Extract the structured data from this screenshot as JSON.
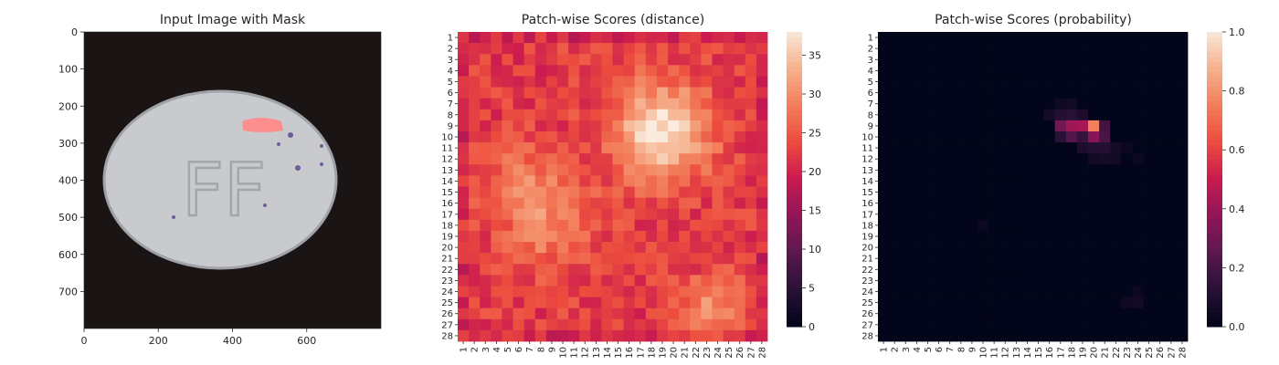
{
  "chart_data": [
    {
      "type": "image",
      "title": "Input Image with Mask",
      "xticks": [
        "0",
        "200",
        "400",
        "600"
      ],
      "yticks": [
        "0",
        "100",
        "200",
        "300",
        "400",
        "500",
        "600",
        "700"
      ],
      "xlim": [
        0,
        800
      ],
      "ylim": [
        0,
        800
      ],
      "image": {
        "background": "#1a1212",
        "pill_color": "#c7c9cc",
        "embossed_text": "FF",
        "mask_color": "#ff8080"
      }
    },
    {
      "type": "heatmap",
      "title": "Patch-wise Scores (distance)",
      "rows": 28,
      "cols": 28,
      "row_labels": [
        "1",
        "2",
        "3",
        "4",
        "5",
        "6",
        "7",
        "8",
        "9",
        "10",
        "11",
        "12",
        "13",
        "14",
        "15",
        "16",
        "17",
        "18",
        "19",
        "20",
        "21",
        "22",
        "23",
        "24",
        "25",
        "26",
        "27",
        "28"
      ],
      "col_labels": [
        "1",
        "2",
        "3",
        "4",
        "5",
        "6",
        "7",
        "8",
        "9",
        "10",
        "11",
        "12",
        "13",
        "14",
        "15",
        "16",
        "17",
        "18",
        "19",
        "20",
        "21",
        "22",
        "23",
        "24",
        "25",
        "26",
        "27",
        "28"
      ],
      "colormap": "rocket",
      "vmin": 0,
      "vmax": 38,
      "colorbar_ticks": [
        "0",
        "5",
        "10",
        "15",
        "20",
        "25",
        "30",
        "35"
      ],
      "base_value": 22,
      "hotspots": [
        {
          "row": 9.5,
          "col": 19,
          "peak": 38,
          "spread": 3.0
        },
        {
          "row": 18,
          "col": 9,
          "peak": 28,
          "spread": 3.0
        },
        {
          "row": 25.5,
          "col": 23.5,
          "peak": 30,
          "spread": 2.0
        },
        {
          "row": 14,
          "col": 6,
          "peak": 27,
          "spread": 2.5
        }
      ]
    },
    {
      "type": "heatmap",
      "title": "Patch-wise Scores (probability)",
      "rows": 28,
      "cols": 28,
      "row_labels": [
        "1",
        "2",
        "3",
        "4",
        "5",
        "6",
        "7",
        "8",
        "9",
        "10",
        "11",
        "12",
        "13",
        "14",
        "15",
        "16",
        "17",
        "18",
        "19",
        "20",
        "21",
        "22",
        "23",
        "24",
        "25",
        "26",
        "27",
        "28"
      ],
      "col_labels": [
        "1",
        "2",
        "3",
        "4",
        "5",
        "6",
        "7",
        "8",
        "9",
        "10",
        "11",
        "12",
        "13",
        "14",
        "15",
        "16",
        "17",
        "18",
        "19",
        "20",
        "21",
        "22",
        "23",
        "24",
        "25",
        "26",
        "27",
        "28"
      ],
      "colormap": "rocket",
      "vmin": 0,
      "vmax": 1,
      "colorbar_ticks": [
        "0.0",
        "0.2",
        "0.4",
        "0.6",
        "0.8",
        "1.0"
      ],
      "cells": [
        {
          "row": 9,
          "col": 20,
          "value": 0.75
        },
        {
          "row": 9,
          "col": 18,
          "value": 0.4
        },
        {
          "row": 9,
          "col": 19,
          "value": 0.42
        },
        {
          "row": 9,
          "col": 17,
          "value": 0.3
        },
        {
          "row": 10,
          "col": 20,
          "value": 0.35
        },
        {
          "row": 10,
          "col": 18,
          "value": 0.22
        },
        {
          "row": 10,
          "col": 19,
          "value": 0.15
        },
        {
          "row": 10,
          "col": 21,
          "value": 0.2
        },
        {
          "row": 10,
          "col": 17,
          "value": 0.12
        },
        {
          "row": 9,
          "col": 21,
          "value": 0.18
        },
        {
          "row": 8,
          "col": 17,
          "value": 0.1
        },
        {
          "row": 8,
          "col": 18,
          "value": 0.12
        },
        {
          "row": 8,
          "col": 19,
          "value": 0.08
        },
        {
          "row": 8,
          "col": 16,
          "value": 0.06
        },
        {
          "row": 11,
          "col": 19,
          "value": 0.08
        },
        {
          "row": 11,
          "col": 20,
          "value": 0.1
        },
        {
          "row": 11,
          "col": 21,
          "value": 0.1
        },
        {
          "row": 11,
          "col": 22,
          "value": 0.06
        },
        {
          "row": 12,
          "col": 20,
          "value": 0.05
        },
        {
          "row": 12,
          "col": 21,
          "value": 0.06
        },
        {
          "row": 12,
          "col": 22,
          "value": 0.05
        },
        {
          "row": 7,
          "col": 17,
          "value": 0.04
        },
        {
          "row": 7,
          "col": 18,
          "value": 0.05
        },
        {
          "row": 25,
          "col": 24,
          "value": 0.05
        },
        {
          "row": 25,
          "col": 23,
          "value": 0.04
        },
        {
          "row": 24,
          "col": 24,
          "value": 0.03
        },
        {
          "row": 18,
          "col": 10,
          "value": 0.03
        },
        {
          "row": 11,
          "col": 23,
          "value": 0.03
        },
        {
          "row": 12,
          "col": 24,
          "value": 0.03
        }
      ]
    }
  ]
}
